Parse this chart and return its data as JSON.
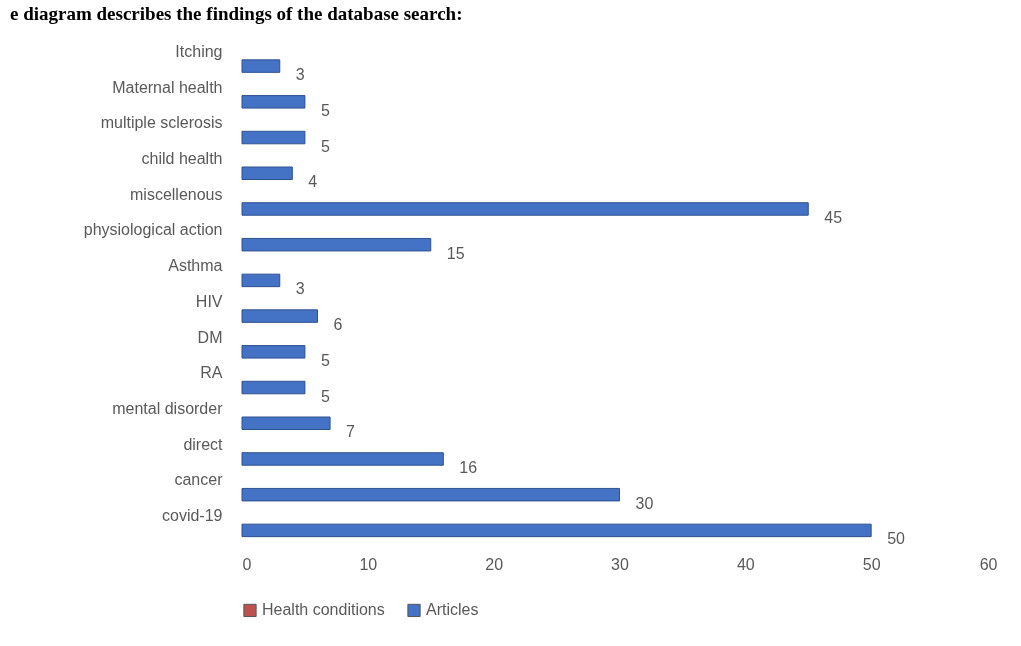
{
  "chart_data": {
    "type": "bar",
    "orientation": "horizontal",
    "title": "e diagram describes the findings of the database search:",
    "categories": [
      "Itching",
      "Maternal health",
      "multiple sclerosis",
      "child health",
      "miscellenous",
      "physiological action",
      "Asthma",
      "HIV",
      "DM",
      "RA",
      "mental disorder",
      "direct",
      "cancer",
      "covid-19"
    ],
    "series": [
      {
        "name": "Health conditions",
        "color": "#c0504d",
        "values": [
          null,
          null,
          null,
          null,
          null,
          null,
          null,
          null,
          null,
          null,
          null,
          null,
          null,
          null
        ]
      },
      {
        "name": "Articles",
        "color": "#4472c4",
        "values": [
          3,
          5,
          5,
          4,
          45,
          15,
          3,
          6,
          5,
          5,
          7,
          16,
          30,
          50
        ]
      }
    ],
    "xlim": [
      0,
      60
    ],
    "xticks": [
      0,
      10,
      20,
      30,
      40,
      50,
      60
    ],
    "data_labels": true,
    "legend": "bottom"
  }
}
